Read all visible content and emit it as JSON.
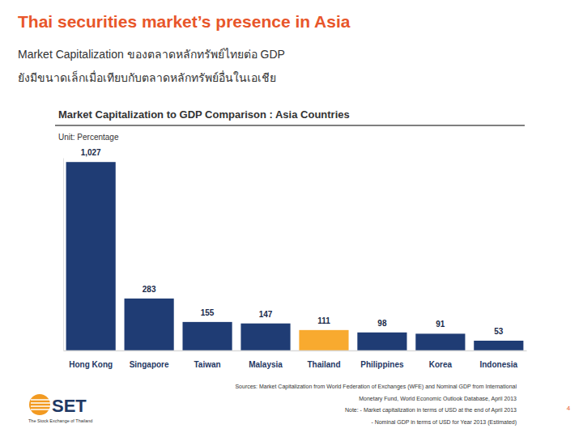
{
  "page": {
    "title": "Thai securities market’s presence in Asia",
    "subtitle_lines": [
      "Market Capitalization ของตลาดหลักทรัพย์ไทยต่อ GDP",
      "ยังมีขนาดเล็กเมื่อเทียบกับตลาดหลักทรัพย์อื่นในเอเชีย"
    ],
    "logo": {
      "name": "SET",
      "tagline": "The Stock Exchange of Thailand"
    },
    "page_number": 4
  },
  "chart_data": {
    "type": "bar",
    "title": "Market Capitalization to GDP Comparison : Asia Countries",
    "subtitle": "Unit: Percentage",
    "categories": [
      "Hong Kong",
      "Singapore",
      "Taiwan",
      "Malaysia",
      "Thailand",
      "Philippines",
      "Korea",
      "Indonesia"
    ],
    "values": [
      1027,
      283,
      155,
      147,
      111,
      98,
      91,
      53
    ],
    "value_labels": [
      "1,027",
      "283",
      "155",
      "147",
      "111",
      "98",
      "91",
      "53"
    ],
    "colors": [
      "#1f3c74",
      "#1f3c74",
      "#1f3c74",
      "#1f3c74",
      "#f8aa2f",
      "#1f3c74",
      "#1f3c74",
      "#1f3c74"
    ],
    "ylim": [
      0,
      1050
    ],
    "data_labels": true,
    "tick_labels": "x",
    "annotations": [
      "Sources: Market Capitalization from World Federation of Exchanges (WFE) and Nominal GDP from International",
      "Monetary Fund, World Economic Outlook Database, April 2013",
      "Note: - Market capitalization in terms of USD at the end of April 2013",
      "- Nominal GDP in terms of USD for Year 2013 (Estimated)"
    ]
  }
}
